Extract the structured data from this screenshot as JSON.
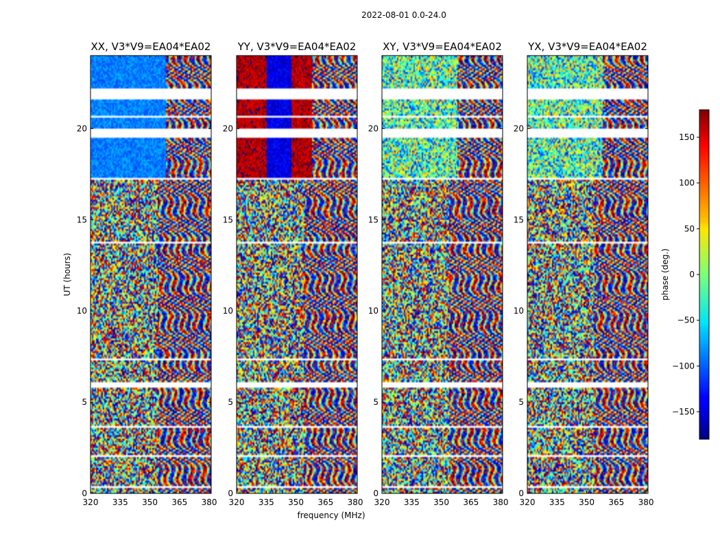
{
  "chart_data": {
    "type": "heatmap",
    "suptitle": "2022-08-01 0.0-24.0",
    "xlabel": "frequency (MHz)",
    "ylabel": "UT (hours)",
    "xlim": [
      320,
      381
    ],
    "ylim": [
      0,
      24
    ],
    "xticks": [
      320,
      335,
      350,
      365,
      380
    ],
    "yticks": [
      0,
      5,
      10,
      15,
      20
    ],
    "colormap": "jet",
    "colorbar": {
      "label": "phase (deg.)",
      "range": [
        -180,
        180
      ],
      "ticks": [
        150,
        100,
        50,
        0,
        -50,
        -100,
        -150
      ],
      "tick_labels": [
        "150",
        "100",
        "50",
        "0",
        "−50",
        "−100",
        "−150"
      ],
      "placement": "right"
    },
    "panels": [
      {
        "title": "XX, V3*V9=EA04*EA02",
        "pol": "XX"
      },
      {
        "title": "YY, V3*V9=EA04*EA02",
        "pol": "YY"
      },
      {
        "title": "XY, V3*V9=EA04*EA02",
        "pol": "XY"
      },
      {
        "title": "YX, V3*V9=EA04*EA02",
        "pol": "YX"
      }
    ],
    "flagged_ut_ranges": [
      [
        0.3,
        0.4
      ],
      [
        2.0,
        2.1
      ],
      [
        3.6,
        3.7
      ],
      [
        5.8,
        6.1
      ],
      [
        7.3,
        7.4
      ],
      [
        13.7,
        13.8
      ],
      [
        17.2,
        17.3
      ],
      [
        19.5,
        20.0
      ],
      [
        20.6,
        20.7
      ],
      [
        21.6,
        22.2
      ]
    ],
    "coherent_phase_ut_ranges": [
      [
        17.3,
        19.5
      ],
      [
        20.0,
        21.6
      ],
      [
        22.2,
        24.0
      ]
    ]
  }
}
